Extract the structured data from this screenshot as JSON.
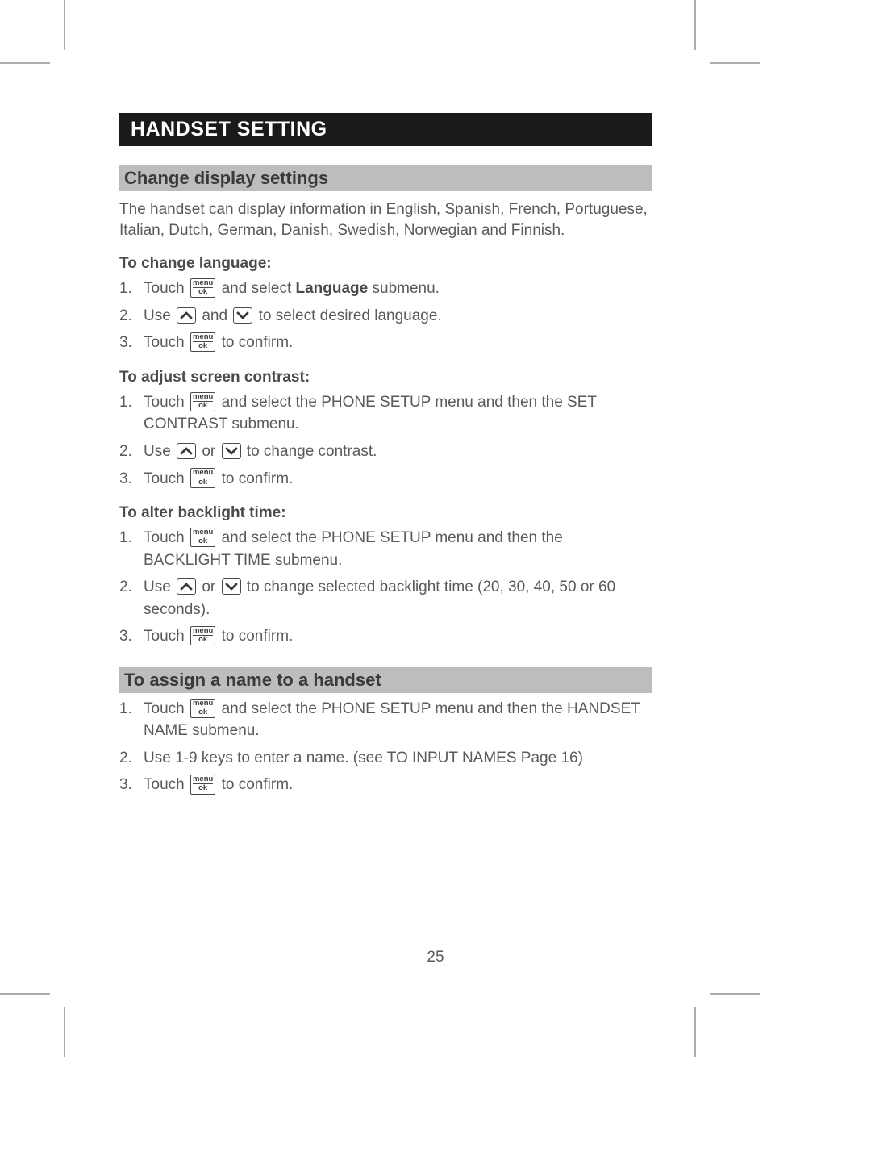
{
  "page_number": "25",
  "main_title": "HANDSET SETTING",
  "crop_marks": {
    "tl": {
      "hx1": 0,
      "hy": 78,
      "hx2": 62,
      "vx": 80,
      "vy1": 0,
      "vy2": 62
    },
    "tr": {
      "hx1": 880,
      "hy": 78,
      "hx2": 942,
      "vx": 862,
      "vy1": 0,
      "vy2": 62
    },
    "bl": {
      "hx1": 0,
      "hy": 1232,
      "hx2": 62,
      "vx": 80,
      "vy1": 1248,
      "vy2": 1310
    },
    "br": {
      "hx1": 880,
      "hy": 1232,
      "hx2": 942,
      "vx": 862,
      "vy1": 1248,
      "vy2": 1310
    }
  },
  "icons": {
    "menu_ok": {
      "top": "menu",
      "bottom": "ok"
    },
    "up": "up-arrow",
    "down": "down-arrow"
  },
  "sections": [
    {
      "title": "Change display settings",
      "intro": "The handset can display information in English, Spanish, French, Portuguese, Italian, Dutch, German, Danish, Swedish, Norwegian and Finnish.",
      "subsections": [
        {
          "title": "To change language:",
          "steps": [
            {
              "pre": "Touch ",
              "icon": "menu_ok",
              "mid": " and select ",
              "bold": "Language",
              "post": " submenu."
            },
            {
              "pre": "Use ",
              "icon": "up",
              "mid": " and ",
              "icon2": "down",
              "post": " to select desired language."
            },
            {
              "pre": "Touch ",
              "icon": "menu_ok",
              "post": " to confirm."
            }
          ]
        },
        {
          "title": "To adjust screen contrast:",
          "steps": [
            {
              "pre": "Touch ",
              "icon": "menu_ok",
              "post": " and select the PHONE SETUP menu and then the SET CONTRAST submenu."
            },
            {
              "pre": "Use ",
              "icon": "up",
              "mid": " or ",
              "icon2": "down",
              "post": " to change contrast."
            },
            {
              "pre": "Touch ",
              "icon": "menu_ok",
              "post": " to confirm."
            }
          ]
        },
        {
          "title": "To alter backlight time:",
          "steps": [
            {
              "pre": "Touch ",
              "icon": "menu_ok",
              "post": " and select the PHONE SETUP menu and then the BACKLIGHT TIME submenu."
            },
            {
              "pre": "Use ",
              "icon": "up",
              "mid": " or ",
              "icon2": "down",
              "post": " to change selected backlight time (20, 30, 40, 50 or 60 seconds)."
            },
            {
              "pre": "Touch ",
              "icon": "menu_ok",
              "post": " to confirm."
            }
          ]
        }
      ]
    },
    {
      "title": "To assign a name to a handset",
      "subsections": [
        {
          "steps": [
            {
              "pre": "Touch ",
              "icon": "menu_ok",
              "post": " and select the PHONE SETUP menu and then the HANDSET NAME submenu."
            },
            {
              "text": "Use 1-9 keys to enter a name. (see TO INPUT NAMES Page 16)"
            },
            {
              "pre": "Touch ",
              "icon": "menu_ok",
              "post": " to confirm."
            }
          ]
        }
      ]
    }
  ]
}
